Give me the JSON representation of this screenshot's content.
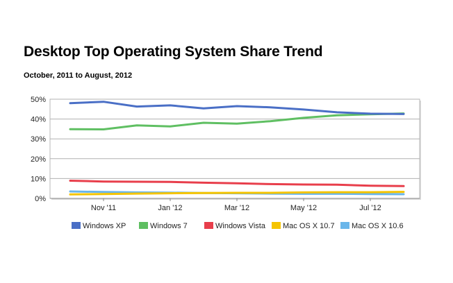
{
  "header": {
    "title": "Desktop Top Operating System Share Trend",
    "subtitle": "October, 2011 to August, 2012"
  },
  "chart_data": {
    "type": "line",
    "title": "Desktop Top Operating System Share Trend",
    "subtitle": "October, 2011 to August, 2012",
    "xlabel": "",
    "ylabel": "",
    "x": [
      "Oct '11",
      "Nov '11",
      "Dec '11",
      "Jan '12",
      "Feb '12",
      "Mar '12",
      "Apr '12",
      "May '12",
      "Jun '12",
      "Jul '12",
      "Aug '12"
    ],
    "x_tick_labels": [
      "Nov '11",
      "Jan '12",
      "Mar '12",
      "May '12",
      "Jul '12"
    ],
    "y_tick_labels": [
      "0%",
      "10%",
      "20%",
      "30%",
      "40%",
      "50%"
    ],
    "ylim": [
      0,
      50
    ],
    "grid": true,
    "legend_position": "bottom",
    "series": [
      {
        "name": "Windows XP",
        "color": "#4a6fc6",
        "values": [
          48.0,
          48.7,
          46.3,
          46.9,
          45.4,
          46.5,
          45.9,
          44.8,
          43.4,
          42.7,
          42.5
        ]
      },
      {
        "name": "Windows 7",
        "color": "#5fbf62",
        "values": [
          34.9,
          34.8,
          36.8,
          36.3,
          38.1,
          37.7,
          38.9,
          40.6,
          41.9,
          42.4,
          42.8
        ]
      },
      {
        "name": "Windows Vista",
        "color": "#e83e4b",
        "values": [
          8.9,
          8.5,
          8.4,
          8.3,
          7.9,
          7.6,
          7.2,
          7.0,
          6.9,
          6.4,
          6.2
        ]
      },
      {
        "name": "Mac OS X 10.7",
        "color": "#f5c400",
        "values": [
          2.0,
          2.2,
          2.4,
          2.6,
          2.7,
          2.8,
          2.8,
          3.0,
          3.1,
          3.1,
          3.3
        ]
      },
      {
        "name": "Mac OS X 10.6",
        "color": "#6ab6ea",
        "values": [
          3.5,
          3.2,
          3.0,
          2.9,
          2.7,
          2.6,
          2.4,
          2.3,
          2.3,
          2.2,
          2.1
        ]
      }
    ]
  }
}
